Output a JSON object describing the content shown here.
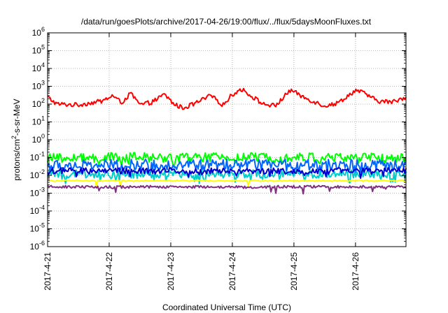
{
  "chart_data": {
    "type": "line",
    "title": "/data/run/goesPlots/archive/2017-04-26/19:00/flux/../flux/5daysMoonFluxes.txt",
    "xlabel": "Coordinated Universal Time (UTC)",
    "ylabel_prefix": "protons/cm",
    "ylabel_sup": "2",
    "ylabel_suffix": "-s-sr-MeV",
    "y_scale": "log",
    "ylim": [
      1e-06,
      1000000
    ],
    "y_tick_exponents": [
      6,
      5,
      4,
      3,
      2,
      1,
      0,
      -1,
      -2,
      -3,
      -4,
      -5,
      -6
    ],
    "xlim": [
      0,
      5.82
    ],
    "x_ticks": [
      {
        "x": 0,
        "label": "2017-4-21"
      },
      {
        "x": 1,
        "label": "2017-4-22"
      },
      {
        "x": 2,
        "label": "2017-4-23"
      },
      {
        "x": 3,
        "label": "2017-4-24"
      },
      {
        "x": 4,
        "label": "2017-4-25"
      },
      {
        "x": 5,
        "label": "2017-4-26"
      }
    ],
    "grid": true,
    "series": [
      {
        "color": "#ff0000",
        "anchors": [
          [
            0,
            250
          ],
          [
            0.15,
            100
          ],
          [
            0.5,
            90
          ],
          [
            0.65,
            110
          ],
          [
            0.9,
            150
          ],
          [
            1.05,
            300
          ],
          [
            1.2,
            120
          ],
          [
            1.35,
            400
          ],
          [
            1.5,
            90
          ],
          [
            1.7,
            130
          ],
          [
            1.9,
            350
          ],
          [
            2.05,
            100
          ],
          [
            2.2,
            60
          ],
          [
            2.4,
            110
          ],
          [
            2.65,
            300
          ],
          [
            2.85,
            90
          ],
          [
            3.0,
            350
          ],
          [
            3.15,
            700
          ],
          [
            3.3,
            300
          ],
          [
            3.5,
            100
          ],
          [
            3.7,
            80
          ],
          [
            3.95,
            650
          ],
          [
            4.1,
            300
          ],
          [
            4.3,
            150
          ],
          [
            4.5,
            80
          ],
          [
            4.7,
            110
          ],
          [
            4.85,
            250
          ],
          [
            5.0,
            600
          ],
          [
            5.15,
            400
          ],
          [
            5.35,
            150
          ],
          [
            5.6,
            130
          ],
          [
            5.82,
            250
          ]
        ],
        "noise": 0.25,
        "dips": 0.0
      },
      {
        "color": "#00ff00",
        "anchors": [
          [
            0,
            0.09
          ],
          [
            1,
            0.1
          ],
          [
            2,
            0.1
          ],
          [
            3,
            0.1
          ],
          [
            4,
            0.1
          ],
          [
            5,
            0.1
          ],
          [
            5.82,
            0.09
          ]
        ],
        "noise": 0.55,
        "dips": 0.08
      },
      {
        "color": "#0066ff",
        "anchors": [
          [
            0,
            0.035
          ],
          [
            1,
            0.04
          ],
          [
            2,
            0.04
          ],
          [
            3,
            0.04
          ],
          [
            4,
            0.04
          ],
          [
            5,
            0.04
          ],
          [
            5.82,
            0.035
          ]
        ],
        "noise": 0.6,
        "dips": 0.15
      },
      {
        "color": "#00cccc",
        "anchors": [
          [
            0,
            0.012
          ],
          [
            1,
            0.012
          ],
          [
            2,
            0.012
          ],
          [
            3,
            0.012
          ],
          [
            4,
            0.012
          ],
          [
            5,
            0.012
          ],
          [
            5.82,
            0.012
          ]
        ],
        "noise": 0.45,
        "dips": 0.2
      },
      {
        "color": "#0000cc",
        "anchors": [
          [
            0,
            0.018
          ],
          [
            1,
            0.018
          ],
          [
            2,
            0.018
          ],
          [
            3,
            0.018
          ],
          [
            4,
            0.018
          ],
          [
            5,
            0.018
          ],
          [
            5.82,
            0.018
          ]
        ],
        "noise": 0.35,
        "dips": 0.05
      },
      {
        "color": "#ffff00",
        "anchors": [
          [
            0,
            0.005
          ],
          [
            1,
            0.005
          ],
          [
            2,
            0.005
          ],
          [
            3,
            0.005
          ],
          [
            4,
            0.005
          ],
          [
            5,
            0.005
          ],
          [
            5.82,
            0.005
          ]
        ],
        "noise": 0.08,
        "dips": 0.02
      },
      {
        "color": "#803080",
        "anchors": [
          [
            0,
            0.0023
          ],
          [
            1,
            0.0022
          ],
          [
            2,
            0.0023
          ],
          [
            3,
            0.0022
          ],
          [
            4,
            0.0023
          ],
          [
            5,
            0.0023
          ],
          [
            5.82,
            0.0022
          ]
        ],
        "noise": 0.15,
        "dips": 0.03
      }
    ]
  }
}
